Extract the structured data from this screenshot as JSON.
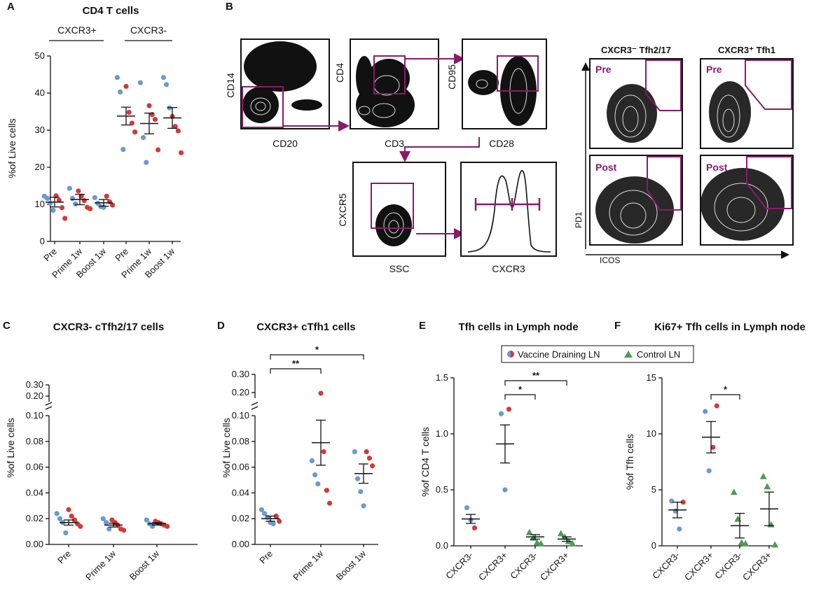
{
  "colors": {
    "blue": "#6a99d4",
    "red": "#d23a3a",
    "green": "#4e9a5a",
    "gate": "#8b1a6b",
    "black": "#111111"
  },
  "panels": {
    "A": {
      "letter": "A",
      "title": "CD4 T cells",
      "group1": "CXCR3+",
      "group2": "CXCR3-",
      "ylabel": "%of Live cells"
    },
    "B": {
      "letter": "B",
      "plot1": {
        "x": "CD20",
        "y": "CD14"
      },
      "plot2": {
        "x": "CD3",
        "y": "CD4"
      },
      "plot3": {
        "x": "CD28",
        "y": "CD95"
      },
      "plot4": {
        "x": "SSC",
        "y": "CXCR5"
      },
      "plot5": {
        "x": "CXCR3"
      },
      "col1": "CXCR3⁻ Tfh2/17",
      "col2": "CXCR3⁺ Tfh1",
      "pre": "Pre",
      "post": "Post",
      "pd1": "PD1",
      "icos": "ICOS"
    },
    "C": {
      "letter": "C",
      "title": "CXCR3- cTfh2/17 cells",
      "ylabel": "%of Live cells"
    },
    "D": {
      "letter": "D",
      "title": "CXCR3+ cTfh1 cells",
      "ylabel": "%of Live cells"
    },
    "E": {
      "letter": "E",
      "title": "Tfh cells in Lymph node",
      "ylabel": "%of CD4 T cells"
    },
    "F": {
      "letter": "F",
      "title": "Ki67+ Tfh cells in Lymph node",
      "ylabel": "%of Tfh cells"
    }
  },
  "legend": {
    "item1": "Vaccine Draining LN",
    "item2": "Control LN"
  },
  "chart_data": [
    {
      "id": "A",
      "type": "scatter",
      "title": "CD4 T cells",
      "ylabel": "%of Live cells",
      "ylim": [
        0,
        50
      ],
      "yticks": [
        "0",
        "10",
        "20",
        "30",
        "40",
        "50"
      ],
      "categories": [
        "Pre",
        "Prime 1w",
        "Boost 1w",
        "Pre",
        "Prime 1w",
        "Boost 1w"
      ],
      "groups": [
        {
          "mean": 10.6,
          "sem": 1.3,
          "points": [
            {
              "v": 12.2,
              "c": "blue"
            },
            {
              "v": 11.6,
              "c": "blue"
            },
            {
              "v": 10.3,
              "c": "blue"
            },
            {
              "v": 8.4,
              "c": "blue"
            },
            {
              "v": 12.3,
              "c": "red"
            },
            {
              "v": 11.1,
              "c": "red"
            },
            {
              "v": 9.1,
              "c": "red"
            },
            {
              "v": 6.2,
              "c": "red"
            }
          ]
        },
        {
          "mean": 11.3,
          "sem": 1.4,
          "points": [
            {
              "v": 14.3,
              "c": "blue"
            },
            {
              "v": 11.6,
              "c": "blue"
            },
            {
              "v": 10.1,
              "c": "blue"
            },
            {
              "v": 13.6,
              "c": "red"
            },
            {
              "v": 12.2,
              "c": "red"
            },
            {
              "v": 11.0,
              "c": "red"
            },
            {
              "v": 9.2,
              "c": "red"
            },
            {
              "v": 8.8,
              "c": "red"
            }
          ]
        },
        {
          "mean": 10.4,
          "sem": 0.9,
          "points": [
            {
              "v": 11.8,
              "c": "blue"
            },
            {
              "v": 10.3,
              "c": "blue"
            },
            {
              "v": 9.4,
              "c": "blue"
            },
            {
              "v": 9.2,
              "c": "blue"
            },
            {
              "v": 12.2,
              "c": "red"
            },
            {
              "v": 10.7,
              "c": "red"
            },
            {
              "v": 9.8,
              "c": "red"
            }
          ]
        },
        {
          "mean": 33.8,
          "sem": 2.4,
          "points": [
            {
              "v": 44.2,
              "c": "blue"
            },
            {
              "v": 40.3,
              "c": "blue"
            },
            {
              "v": 24.8,
              "c": "blue"
            },
            {
              "v": 41.8,
              "c": "red"
            },
            {
              "v": 34.8,
              "c": "red"
            },
            {
              "v": 31.9,
              "c": "red"
            },
            {
              "v": 29.5,
              "c": "red"
            }
          ]
        },
        {
          "mean": 31.8,
          "sem": 2.8,
          "points": [
            {
              "v": 42.8,
              "c": "blue"
            },
            {
              "v": 28.0,
              "c": "blue"
            },
            {
              "v": 21.3,
              "c": "blue"
            },
            {
              "v": 36.6,
              "c": "red"
            },
            {
              "v": 34.2,
              "c": "red"
            },
            {
              "v": 32.9,
              "c": "red"
            },
            {
              "v": 24.7,
              "c": "red"
            }
          ]
        },
        {
          "mean": 33.3,
          "sem": 2.8,
          "points": [
            {
              "v": 44.2,
              "c": "blue"
            },
            {
              "v": 42.3,
              "c": "blue"
            },
            {
              "v": 36.0,
              "c": "blue"
            },
            {
              "v": 33.7,
              "c": "red"
            },
            {
              "v": 31.0,
              "c": "red"
            },
            {
              "v": 29.8,
              "c": "red"
            },
            {
              "v": 23.9,
              "c": "red"
            }
          ]
        }
      ]
    },
    {
      "id": "C",
      "type": "scatter",
      "title": "CXCR3- cTfh2/17 cells",
      "ylabel": "%of Live cells",
      "ylim": [
        0,
        0.1
      ],
      "upper_ticks": [
        "0.20",
        "0.30"
      ],
      "yticks": [
        "0.00",
        "0.02",
        "0.04",
        "0.06",
        "0.08",
        "0.10"
      ],
      "categories": [
        "Pre",
        "Prime 1w",
        "Boost 1w"
      ],
      "groups": [
        {
          "mean": 0.017,
          "sem": 0.002,
          "points": [
            {
              "v": 0.024,
              "c": "blue"
            },
            {
              "v": 0.02,
              "c": "blue"
            },
            {
              "v": 0.017,
              "c": "blue"
            },
            {
              "v": 0.009,
              "c": "blue"
            },
            {
              "v": 0.027,
              "c": "red"
            },
            {
              "v": 0.022,
              "c": "red"
            },
            {
              "v": 0.019,
              "c": "red"
            },
            {
              "v": 0.016,
              "c": "red"
            },
            {
              "v": 0.014,
              "c": "red"
            }
          ]
        },
        {
          "mean": 0.015,
          "sem": 0.0015,
          "points": [
            {
              "v": 0.02,
              "c": "blue"
            },
            {
              "v": 0.017,
              "c": "blue"
            },
            {
              "v": 0.012,
              "c": "blue"
            },
            {
              "v": 0.019,
              "c": "red"
            },
            {
              "v": 0.017,
              "c": "red"
            },
            {
              "v": 0.015,
              "c": "red"
            },
            {
              "v": 0.012,
              "c": "red"
            },
            {
              "v": 0.011,
              "c": "red"
            }
          ]
        },
        {
          "mean": 0.016,
          "sem": 0.001,
          "points": [
            {
              "v": 0.019,
              "c": "blue"
            },
            {
              "v": 0.016,
              "c": "blue"
            },
            {
              "v": 0.014,
              "c": "blue"
            },
            {
              "v": 0.018,
              "c": "red"
            },
            {
              "v": 0.017,
              "c": "red"
            },
            {
              "v": 0.016,
              "c": "red"
            },
            {
              "v": 0.015,
              "c": "red"
            },
            {
              "v": 0.014,
              "c": "red"
            }
          ]
        }
      ]
    },
    {
      "id": "D",
      "type": "scatter",
      "title": "CXCR3+ cTfh1 cells",
      "ylabel": "%of Live cells",
      "ylim": [
        0,
        0.1
      ],
      "upper_ticks": [
        "0.20",
        "0.30"
      ],
      "yticks": [
        "0.00",
        "0.02",
        "0.04",
        "0.06",
        "0.08",
        "0.10"
      ],
      "categories": [
        "Pre",
        "Prime 1w",
        "Boost 1w"
      ],
      "groups": [
        {
          "mean": 0.02,
          "sem": 0.002,
          "points": [
            {
              "v": 0.027,
              "c": "blue"
            },
            {
              "v": 0.024,
              "c": "blue"
            },
            {
              "v": 0.021,
              "c": "blue"
            },
            {
              "v": 0.017,
              "c": "blue"
            },
            {
              "v": 0.016,
              "c": "blue"
            },
            {
              "v": 0.022,
              "c": "red"
            },
            {
              "v": 0.018,
              "c": "red"
            }
          ]
        },
        {
          "mean": 0.079,
          "sem": 0.0175,
          "points": [
            {
              "v": 0.065,
              "c": "blue"
            },
            {
              "v": 0.054,
              "c": "blue"
            },
            {
              "v": 0.047,
              "c": "blue"
            },
            {
              "v": 0.19,
              "c": "red"
            },
            {
              "v": 0.072,
              "c": "red"
            },
            {
              "v": 0.042,
              "c": "red"
            },
            {
              "v": 0.032,
              "c": "red"
            }
          ]
        },
        {
          "mean": 0.055,
          "sem": 0.0075,
          "points": [
            {
              "v": 0.072,
              "c": "blue"
            },
            {
              "v": 0.051,
              "c": "blue"
            },
            {
              "v": 0.041,
              "c": "blue"
            },
            {
              "v": 0.03,
              "c": "blue"
            },
            {
              "v": 0.072,
              "c": "red"
            },
            {
              "v": 0.067,
              "c": "red"
            },
            {
              "v": 0.061,
              "c": "red"
            }
          ]
        }
      ],
      "significance": [
        {
          "from": 0,
          "to": 1,
          "label": "**"
        },
        {
          "from": 0,
          "to": 2,
          "label": "*"
        }
      ]
    },
    {
      "id": "E",
      "type": "scatter",
      "title": "Tfh cells in Lymph node",
      "ylabel": "%of CD4 T cells",
      "ylim": [
        0,
        1.5
      ],
      "yticks": [
        "0.0",
        "0.5",
        "1.0",
        "1.5"
      ],
      "categories": [
        "CXCR3-",
        "CXCR3+",
        "CXCR3-",
        "CXCR3+"
      ],
      "groups": [
        {
          "mean": 0.24,
          "sem": 0.04,
          "shape": "circle",
          "points": [
            {
              "v": 0.34,
              "c": "blue"
            },
            {
              "v": 0.23,
              "c": "blue"
            },
            {
              "v": 0.16,
              "c": "red"
            }
          ]
        },
        {
          "mean": 0.91,
          "sem": 0.17,
          "shape": "circle",
          "points": [
            {
              "v": 1.18,
              "c": "blue"
            },
            {
              "v": 0.5,
              "c": "blue"
            },
            {
              "v": 1.22,
              "c": "red"
            }
          ]
        },
        {
          "mean": 0.08,
          "sem": 0.02,
          "shape": "triangle",
          "points": [
            {
              "v": 0.12,
              "c": "green"
            },
            {
              "v": 0.07,
              "c": "green"
            },
            {
              "v": 0.03,
              "c": "green"
            },
            {
              "v": 0.02,
              "c": "green"
            }
          ]
        },
        {
          "mean": 0.06,
          "sem": 0.02,
          "shape": "triangle",
          "points": [
            {
              "v": 0.11,
              "c": "green"
            },
            {
              "v": 0.08,
              "c": "green"
            },
            {
              "v": 0.04,
              "c": "green"
            },
            {
              "v": 0.02,
              "c": "green"
            }
          ]
        }
      ],
      "significance": [
        {
          "from": 1,
          "to": 2,
          "label": "*"
        },
        {
          "from": 1,
          "to": 3,
          "label": "**"
        }
      ]
    },
    {
      "id": "F",
      "type": "scatter",
      "title": "Ki67+ Tfh cells in Lymph node",
      "ylabel": "%of Tfh cells",
      "ylim": [
        0,
        15
      ],
      "yticks": [
        "0",
        "5",
        "10",
        "15"
      ],
      "categories": [
        "CXCR3-",
        "CXCR3+",
        "CXCR3-",
        "CXCR3+"
      ],
      "groups": [
        {
          "mean": 3.2,
          "sem": 0.7,
          "shape": "circle",
          "points": [
            {
              "v": 4.0,
              "c": "blue"
            },
            {
              "v": 3.1,
              "c": "blue"
            },
            {
              "v": 1.5,
              "c": "blue"
            },
            {
              "v": 3.9,
              "c": "red"
            }
          ]
        },
        {
          "mean": 9.7,
          "sem": 1.4,
          "shape": "circle",
          "points": [
            {
              "v": 12.0,
              "c": "blue"
            },
            {
              "v": 6.7,
              "c": "blue"
            },
            {
              "v": 8.8,
              "c": "red"
            },
            {
              "v": 12.5,
              "c": "red"
            }
          ]
        },
        {
          "mean": 1.8,
          "sem": 1.1,
          "shape": "triangle",
          "points": [
            {
              "v": 4.8,
              "c": "green"
            },
            {
              "v": 2.4,
              "c": "green"
            },
            {
              "v": 0.3,
              "c": "green"
            },
            {
              "v": 0.2,
              "c": "green"
            }
          ]
        },
        {
          "mean": 3.3,
          "sem": 1.5,
          "shape": "triangle",
          "points": [
            {
              "v": 6.2,
              "c": "green"
            },
            {
              "v": 5.3,
              "c": "green"
            },
            {
              "v": 1.9,
              "c": "green"
            },
            {
              "v": 0.1,
              "c": "green"
            }
          ]
        }
      ],
      "significance": [
        {
          "from": 1,
          "to": 2,
          "label": "*"
        }
      ]
    }
  ]
}
